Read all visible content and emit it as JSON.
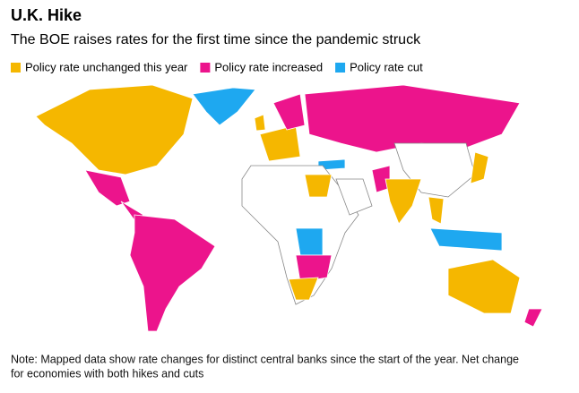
{
  "title": "U.K. Hike",
  "subtitle": "The BOE raises rates for the first time since the pandemic struck",
  "legend": [
    {
      "name": "Policy rate unchanged this year",
      "color": "#f5b700"
    },
    {
      "name": "Policy rate increased",
      "color": "#ec148c"
    },
    {
      "name": "Policy rate cut",
      "color": "#1ea8f0"
    }
  ],
  "note": [
    "Note: Mapped data show rate changes for distinct central banks since the start of the year. Net change",
    "for economies with both hikes and cuts"
  ]
}
